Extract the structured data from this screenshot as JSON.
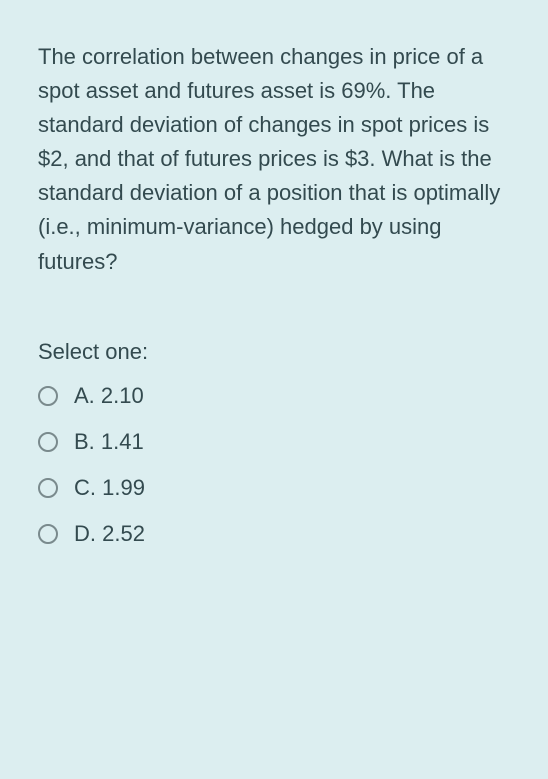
{
  "question": {
    "text": "The correlation between changes in price of a spot asset and futures asset is 69%. The standard deviation of changes in spot prices is $2, and that of futures prices is $3. What is the standard deviation of a position that is optimally (i.e., minimum-variance) hedged by using futures?",
    "fontsize": 22,
    "text_color": "#334a4f",
    "background_color": "#dceef0"
  },
  "select_label": "Select one:",
  "options": [
    {
      "label": "A. 2.10"
    },
    {
      "label": "B. 1.41"
    },
    {
      "label": "C. 1.99"
    },
    {
      "label": "D. 2.52"
    }
  ],
  "radio_style": {
    "border_color": "#7a8a8d",
    "size": 20
  }
}
